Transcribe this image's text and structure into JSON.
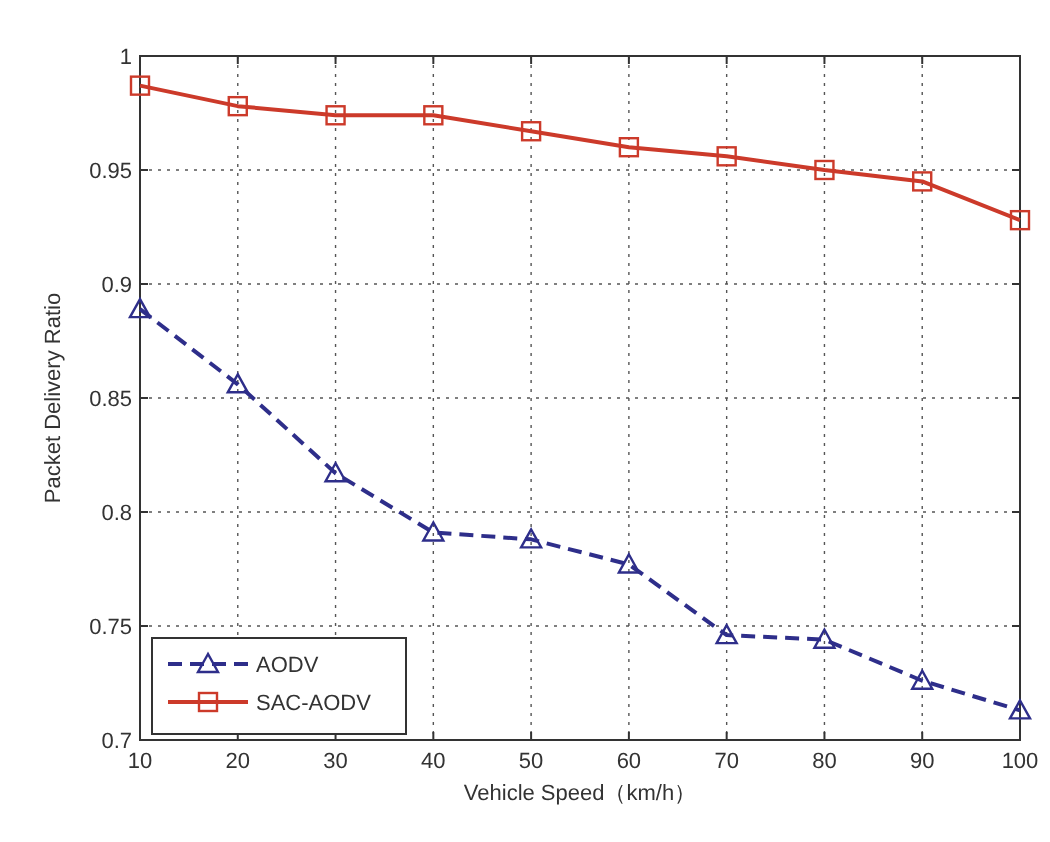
{
  "chart_data": {
    "type": "line",
    "xlabel": "Vehicle Speed（km/h）",
    "ylabel": "Packet Delivery Ratio",
    "x": [
      10,
      20,
      30,
      40,
      50,
      60,
      70,
      80,
      90,
      100
    ],
    "series": [
      {
        "name": "AODV",
        "color": "#2e2e8a",
        "marker": "triangle",
        "line_style": "dashed",
        "values": [
          0.889,
          0.856,
          0.817,
          0.791,
          0.788,
          0.777,
          0.746,
          0.744,
          0.726,
          0.713
        ]
      },
      {
        "name": "SAC-AODV",
        "color": "#cc3a2a",
        "marker": "square",
        "line_style": "solid",
        "values": [
          0.987,
          0.978,
          0.974,
          0.974,
          0.967,
          0.96,
          0.956,
          0.95,
          0.945,
          0.928
        ]
      }
    ],
    "xlim": [
      10,
      100
    ],
    "xticks": [
      10,
      20,
      30,
      40,
      50,
      60,
      70,
      80,
      90,
      100
    ],
    "ylim": [
      0.7,
      1
    ],
    "yticks": [
      0.7,
      0.75,
      0.8,
      0.85,
      0.9,
      0.95,
      1
    ],
    "grid": true,
    "legend": "bottom left"
  }
}
